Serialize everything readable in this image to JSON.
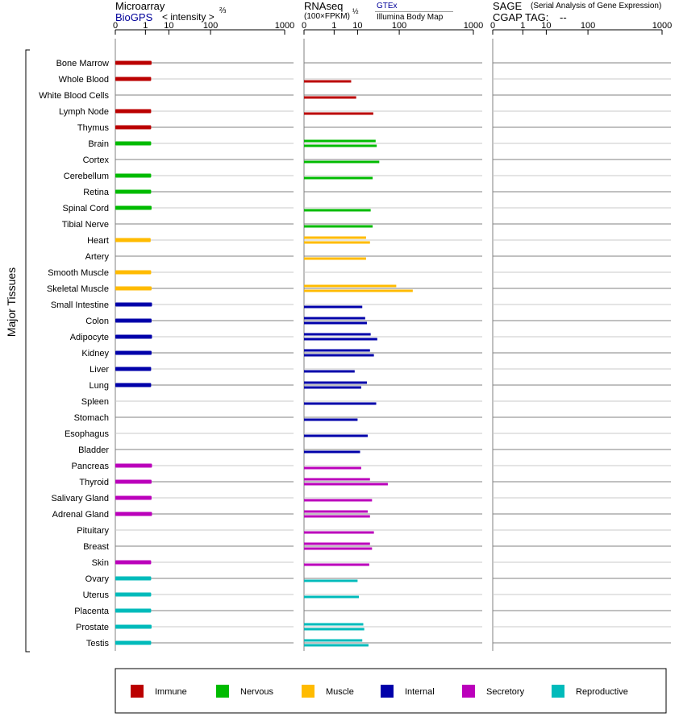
{
  "headers": {
    "microarray": {
      "title": "Microarray",
      "source": "BioGPS",
      "unit": "< intensity >",
      "unit_exp": "⅔"
    },
    "rnaseq": {
      "title": "RNAseq",
      "unit": "(100×FPKM)",
      "unit_exp": "½",
      "source1": "GTEx",
      "source2": "Illumina Body Map"
    },
    "sage": {
      "title": "SAGE",
      "subtitle": "(Serial Analysis of Gene Expression)",
      "tag_label": "CGAP TAG:",
      "tag_value": "--"
    }
  },
  "y_axis_label": "Major Tissues",
  "tick_labels": [
    "0",
    "1",
    "10",
    "100",
    "1000"
  ],
  "legend": [
    {
      "name": "Immune",
      "color": "#bb0000"
    },
    {
      "name": "Nervous",
      "color": "#00bb00"
    },
    {
      "name": "Muscle",
      "color": "#ffbb00"
    },
    {
      "name": "Internal",
      "color": "#0000aa"
    },
    {
      "name": "Secretory",
      "color": "#bb00bb"
    },
    {
      "name": "Reproductive",
      "color": "#00bbbb"
    }
  ],
  "chart_data": {
    "type": "bar",
    "orientation": "horizontal",
    "scale": "power",
    "categories": [
      "Bone Marrow",
      "Whole Blood",
      "White Blood Cells",
      "Lymph Node",
      "Thymus",
      "Brain",
      "Cortex",
      "Cerebellum",
      "Retina",
      "Spinal Cord",
      "Tibial Nerve",
      "Heart",
      "Artery",
      "Smooth Muscle",
      "Skeletal Muscle",
      "Small Intestine",
      "Colon",
      "Adipocyte",
      "Kidney",
      "Liver",
      "Lung",
      "Spleen",
      "Stomach",
      "Esophagus",
      "Bladder",
      "Pancreas",
      "Thyroid",
      "Salivary Gland",
      "Adrenal Gland",
      "Pituitary",
      "Breast",
      "Skin",
      "Ovary",
      "Uterus",
      "Placenta",
      "Prostate",
      "Testis"
    ],
    "groups": [
      "Immune",
      "Immune",
      "Immune",
      "Immune",
      "Immune",
      "Nervous",
      "Nervous",
      "Nervous",
      "Nervous",
      "Nervous",
      "Nervous",
      "Muscle",
      "Muscle",
      "Muscle",
      "Muscle",
      "Internal",
      "Internal",
      "Internal",
      "Internal",
      "Internal",
      "Internal",
      "Internal",
      "Internal",
      "Internal",
      "Internal",
      "Secretory",
      "Secretory",
      "Secretory",
      "Secretory",
      "Secretory",
      "Secretory",
      "Secretory",
      "Reproductive",
      "Reproductive",
      "Reproductive",
      "Reproductive",
      "Reproductive"
    ],
    "microarray_biogps": [
      2.1,
      2.0,
      null,
      2.0,
      2.0,
      2.0,
      null,
      2.0,
      2.0,
      2.1,
      null,
      1.9,
      null,
      2.0,
      2.1,
      2.2,
      2.1,
      2.2,
      2.1,
      2.0,
      2.0,
      null,
      null,
      null,
      null,
      2.2,
      2.1,
      2.1,
      2.2,
      null,
      null,
      2.0,
      2.0,
      2.0,
      2.0,
      2.1,
      2.0
    ],
    "rnaseq_gtex": [
      null,
      null,
      null,
      null,
      null,
      32,
      null,
      null,
      null,
      null,
      null,
      18,
      null,
      null,
      88,
      null,
      17,
      24,
      23,
      null,
      19,
      null,
      null,
      null,
      null,
      null,
      23,
      null,
      20,
      null,
      23,
      null,
      null,
      null,
      null,
      15,
      14
    ],
    "rnaseq_illumina": [
      null,
      6,
      9,
      28,
      null,
      34,
      39,
      27,
      null,
      24,
      27,
      23,
      18,
      null,
      170,
      14,
      19,
      35,
      29,
      8,
      13,
      33,
      10,
      20,
      12,
      13,
      60,
      26,
      23,
      29,
      26,
      22,
      10,
      11,
      null,
      16,
      21
    ],
    "sage_cgap": [],
    "ranges": {
      "x": [
        0,
        1000
      ]
    }
  }
}
